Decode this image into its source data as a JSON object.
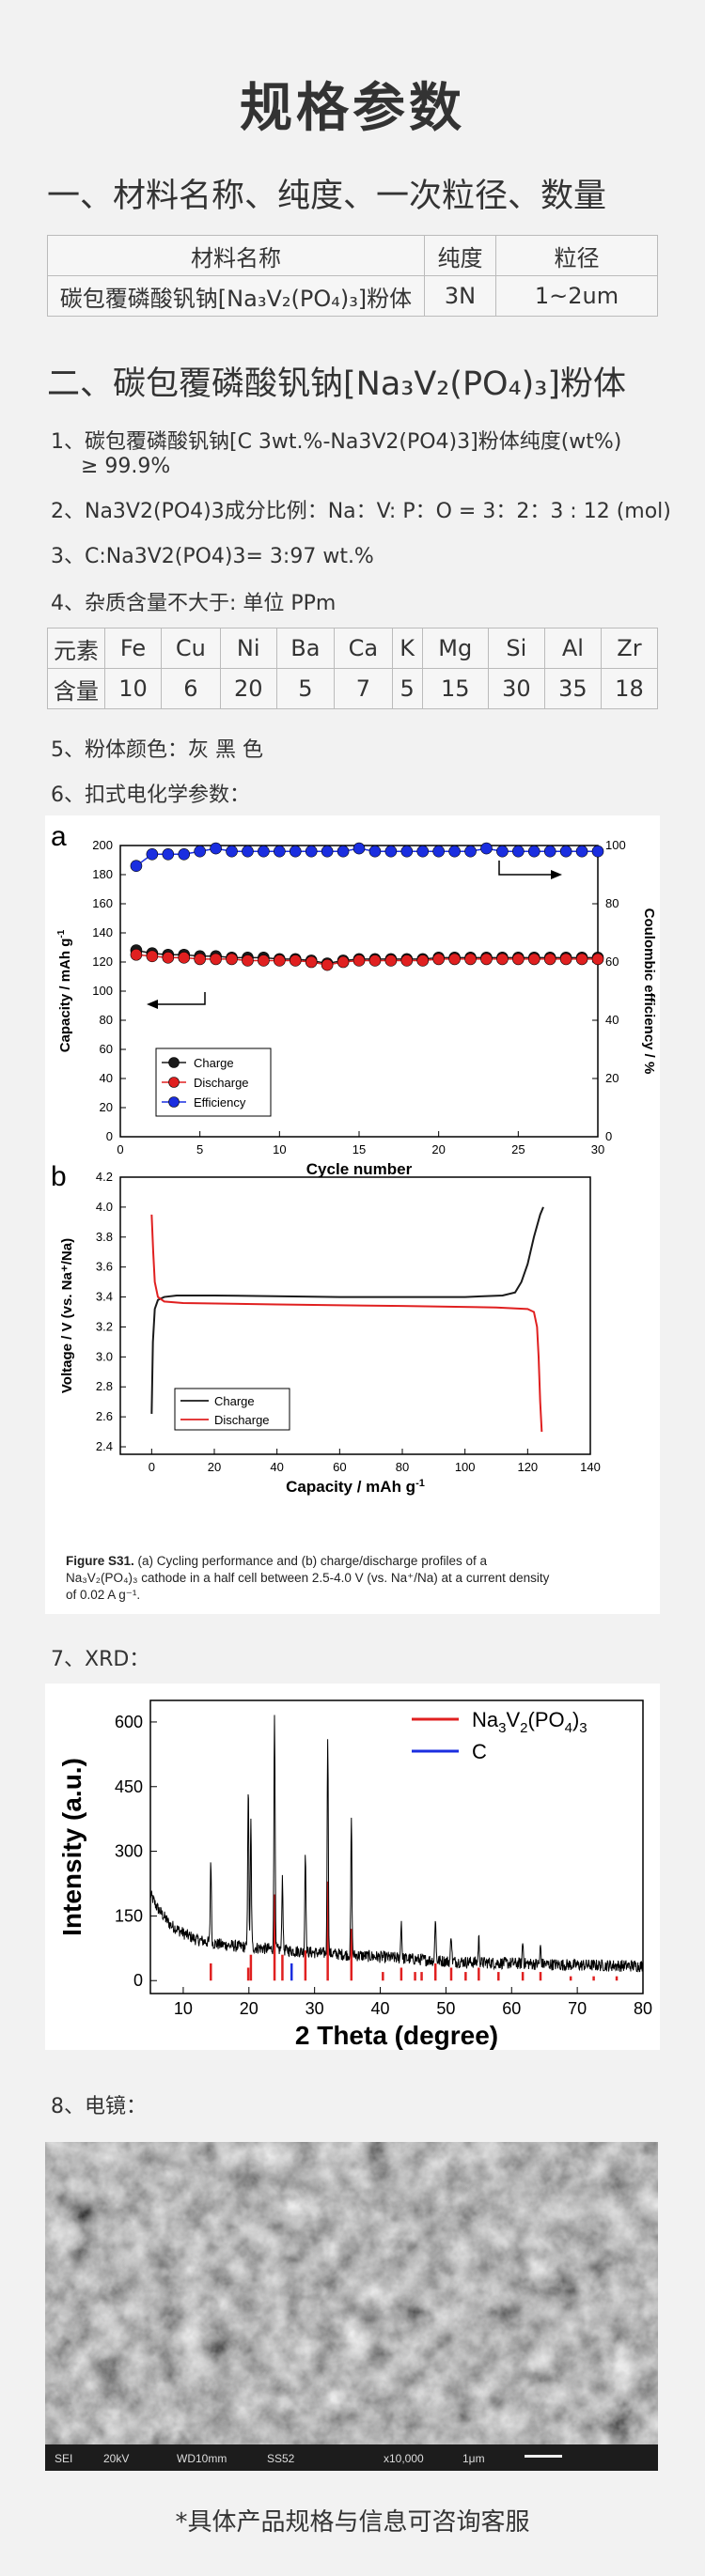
{
  "title": "规格参数",
  "section1": {
    "heading": "一、材料名称、纯度、一次粒径、数量",
    "table": {
      "headers": [
        "材料名称",
        "纯度",
        "粒径"
      ],
      "row": [
        "碳包覆磷酸钒钠[Na₃V₂(PO₄)₃]粉体",
        "3N",
        "1~2um"
      ]
    }
  },
  "section2": {
    "heading": "二、碳包覆磷酸钒钠[Na₃V₂(PO₄)₃]粉体",
    "item1_line1": "1、碳包覆磷酸钒钠[C 3wt.%-Na3V2(PO4)3]粉体纯度(wt%)",
    "item1_line2": "≥ 99.9%",
    "item2": "2、Na3V2(PO4)3成分比例：Na：V: P：O = 3：2：3 : 12 (mol)",
    "item3": "3、C:Na3V2(PO4)3= 3:97 wt.%",
    "item4": "4、杂质含量不大于: 单位 PPm",
    "impurity": {
      "elements_label": "元素",
      "content_label": "含量",
      "elements": [
        "Fe",
        "Cu",
        "Ni",
        "Ba",
        "Ca",
        "K",
        "Mg",
        "Si",
        "Al",
        "Zr"
      ],
      "values": [
        "10",
        "6",
        "20",
        "5",
        "7",
        "5",
        "15",
        "30",
        "35",
        "18"
      ]
    },
    "item5": "5、粉体颜色：灰 黑 色",
    "item6": "6、扣式电化学参数：",
    "item7": "7、XRD：",
    "item8": "8、电镜："
  },
  "figure_a": {
    "panel": "a",
    "xlabel": "Cycle number",
    "ylabel_left": "Capacity / mAh g",
    "ylabel_left_sup": "-1",
    "ylabel_right": "Coulombic efficiency / %",
    "legend": [
      "Charge",
      "Discharge",
      "Efficiency"
    ],
    "x_ticks": [
      "0",
      "5",
      "10",
      "15",
      "20",
      "25",
      "30"
    ],
    "y_left_ticks": [
      "0",
      "20",
      "40",
      "60",
      "80",
      "100",
      "120",
      "140",
      "160",
      "180",
      "200"
    ],
    "y_right_ticks": [
      "0",
      "20",
      "40",
      "60",
      "80",
      "100"
    ]
  },
  "figure_b": {
    "panel": "b",
    "xlabel": "Capacity / mAh g",
    "xlabel_sup": "-1",
    "ylabel": "Voltage / V (vs. Na⁺/Na)",
    "legend": [
      "Charge",
      "Discharge"
    ],
    "x_ticks": [
      "0",
      "20",
      "40",
      "60",
      "80",
      "100",
      "120",
      "140"
    ],
    "y_ticks": [
      "2.4",
      "2.6",
      "2.8",
      "3.0",
      "3.2",
      "3.4",
      "3.6",
      "3.8",
      "4.0",
      "4.2"
    ],
    "caption_bold": "Figure S31.",
    "caption_line1": "(a) Cycling performance and (b) charge/discharge profiles of a",
    "caption_line2": "Na₃V₂(PO₄)₃ cathode in a half cell between 2.5-4.0 V (vs. Na⁺/Na) at a current density",
    "caption_line3": "of 0.02 A g⁻¹."
  },
  "xrd": {
    "xlabel": "2 Theta (degree)",
    "ylabel": "Intensity (a.u.)",
    "legend": [
      "Na3V2(PO4)3",
      "C"
    ],
    "x_ticks": [
      "10",
      "20",
      "30",
      "40",
      "50",
      "60",
      "70",
      "80"
    ],
    "y_ticks": [
      "0",
      "150",
      "300",
      "450",
      "600"
    ]
  },
  "sem": {
    "info": [
      "SEI",
      "20kV",
      "WD10mm",
      "SS52",
      "x10,000",
      "1μm"
    ]
  },
  "footer": "*具体产品规格与信息可咨询客服",
  "colors": {
    "charge": "#1a1a1a",
    "discharge": "#e02020",
    "efficiency": "#1a2ee0",
    "nvp": "#e02020",
    "carbon": "#1a2ee0"
  },
  "chart_data": [
    {
      "type": "scatter",
      "title": "Cycling performance",
      "xlabel": "Cycle number",
      "ylabel": "Capacity / mAh g-1",
      "xlim": [
        0,
        30
      ],
      "ylim": [
        0,
        200
      ],
      "y2lim": [
        0,
        100
      ],
      "x": [
        1,
        2,
        3,
        4,
        5,
        6,
        7,
        8,
        9,
        10,
        11,
        12,
        13,
        14,
        15,
        16,
        17,
        18,
        19,
        20,
        21,
        22,
        23,
        24,
        25,
        26,
        27,
        28,
        29,
        30
      ],
      "series": [
        {
          "name": "Charge",
          "axis": "left",
          "values": [
            128,
            126,
            125,
            125,
            124,
            124,
            123,
            123,
            123,
            122,
            122,
            121,
            119,
            121,
            122,
            122,
            122,
            122,
            122,
            123,
            123,
            123,
            123,
            123,
            123,
            123,
            123,
            123,
            123,
            123
          ]
        },
        {
          "name": "Discharge",
          "axis": "left",
          "values": [
            125,
            124,
            123,
            123,
            122,
            122,
            122,
            121,
            121,
            121,
            121,
            120,
            118,
            120,
            121,
            121,
            121,
            121,
            121,
            122,
            122,
            122,
            122,
            122,
            122,
            122,
            122,
            122,
            122,
            122
          ]
        },
        {
          "name": "Efficiency",
          "axis": "right",
          "values": [
            93,
            97,
            97,
            97,
            98,
            99,
            98,
            98,
            98,
            98,
            98,
            98,
            98,
            98,
            99,
            98,
            98,
            98,
            98,
            98,
            98,
            98,
            99,
            98,
            98,
            98,
            98,
            98,
            98,
            98
          ]
        }
      ]
    },
    {
      "type": "line",
      "title": "Charge/discharge profiles",
      "xlabel": "Capacity / mAh g-1",
      "ylabel": "Voltage / V (vs. Na+/Na)",
      "xlim": [
        -10,
        140
      ],
      "ylim": [
        2.35,
        4.2
      ],
      "series": [
        {
          "name": "Charge",
          "x": [
            0,
            0.4,
            1,
            2,
            4,
            8,
            20,
            60,
            100,
            112,
            116,
            118,
            120,
            122,
            124,
            125
          ],
          "y": [
            2.62,
            3.1,
            3.32,
            3.38,
            3.4,
            3.41,
            3.41,
            3.4,
            3.4,
            3.41,
            3.43,
            3.5,
            3.62,
            3.8,
            3.95,
            4.0
          ]
        },
        {
          "name": "Discharge",
          "x": [
            0,
            0.5,
            1,
            2,
            4,
            10,
            40,
            80,
            110,
            120,
            122,
            123,
            123.5,
            124,
            124.5
          ],
          "y": [
            3.95,
            3.7,
            3.5,
            3.4,
            3.37,
            3.36,
            3.35,
            3.34,
            3.33,
            3.32,
            3.3,
            3.2,
            3.0,
            2.7,
            2.5
          ]
        }
      ]
    },
    {
      "type": "line",
      "title": "XRD",
      "xlabel": "2 Theta (degree)",
      "ylabel": "Intensity (a.u.)",
      "xlim": [
        5,
        80
      ],
      "ylim": [
        -30,
        650
      ],
      "background_x": [
        5,
        6,
        8,
        10,
        12,
        15,
        18,
        22,
        26,
        30,
        35,
        40,
        45,
        50,
        55,
        60,
        65,
        70,
        75,
        80
      ],
      "background_y": [
        200,
        170,
        130,
        110,
        95,
        85,
        80,
        75,
        70,
        65,
        60,
        55,
        50,
        45,
        42,
        40,
        38,
        36,
        35,
        34
      ],
      "peaks": [
        {
          "x": 14.2,
          "y": 280
        },
        {
          "x": 19.9,
          "y": 450
        },
        {
          "x": 20.3,
          "y": 370
        },
        {
          "x": 23.9,
          "y": 630
        },
        {
          "x": 25.1,
          "y": 240
        },
        {
          "x": 28.6,
          "y": 300
        },
        {
          "x": 32.0,
          "y": 570
        },
        {
          "x": 35.6,
          "y": 380
        },
        {
          "x": 43.2,
          "y": 140
        },
        {
          "x": 48.4,
          "y": 150
        },
        {
          "x": 50.8,
          "y": 110
        },
        {
          "x": 55.0,
          "y": 100
        },
        {
          "x": 61.7,
          "y": 90
        },
        {
          "x": 64.4,
          "y": 80
        }
      ],
      "reference_nvp_x": [
        14.2,
        19.9,
        20.3,
        23.9,
        25.1,
        28.6,
        32.0,
        35.6,
        40.4,
        43.2,
        45.3,
        46.3,
        48.4,
        50.8,
        53.0,
        55.0,
        58.0,
        61.7,
        64.4,
        69.0,
        72.5,
        76.0
      ],
      "reference_nvp_h": [
        40,
        30,
        60,
        200,
        60,
        70,
        230,
        120,
        20,
        30,
        20,
        20,
        40,
        30,
        20,
        30,
        20,
        20,
        20,
        10,
        10,
        10
      ],
      "reference_c_x": [
        26.5
      ],
      "reference_c_h": [
        40
      ]
    }
  ]
}
